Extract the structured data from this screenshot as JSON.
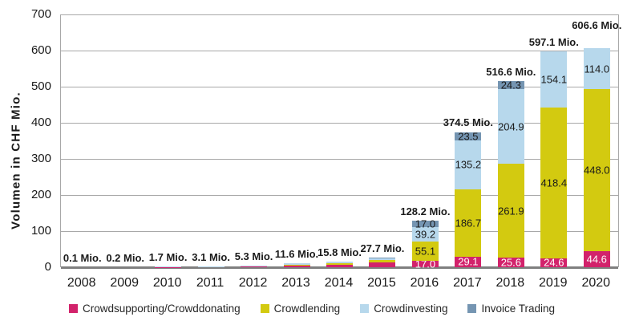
{
  "chart_data": {
    "type": "bar",
    "stacked": true,
    "title": "",
    "xlabel": "",
    "ylabel": "Volumen in CHF Mio.",
    "ylim": [
      0,
      700
    ],
    "yticks": [
      0,
      100,
      200,
      300,
      400,
      500,
      600,
      700
    ],
    "grid": true,
    "legend_position": "bottom",
    "categories": [
      "2008",
      "2009",
      "2010",
      "2011",
      "2012",
      "2013",
      "2014",
      "2015",
      "2016",
      "2017",
      "2018",
      "2019",
      "2020"
    ],
    "series": [
      {
        "name": "Crowdsupporting/Crowddonating",
        "color": "#d2226b",
        "label_color": "#ffffff",
        "values": [
          0.1,
          0.1,
          1.0,
          1.5,
          2.5,
          4.2,
          7.7,
          12.3,
          17.0,
          29.1,
          25.6,
          24.6,
          44.6
        ]
      },
      {
        "name": "Crowdlending",
        "color": "#d3ca10",
        "label_color": "#1a1a1a",
        "values": [
          0,
          0,
          0.1,
          0.1,
          0.9,
          1.8,
          3.5,
          7.9,
          55.1,
          186.7,
          261.9,
          418.4,
          448.0
        ]
      },
      {
        "name": "Crowdinvesting",
        "color": "#b7d8ec",
        "label_color": "#1a1a1a",
        "values": [
          0,
          0.1,
          0.6,
          1.5,
          1.9,
          5.6,
          4.6,
          7.1,
          39.2,
          135.2,
          204.9,
          154.1,
          114.0
        ]
      },
      {
        "name": "Invoice Trading",
        "color": "#7595b2",
        "label_color": "#1a1a1a",
        "values": [
          0,
          0,
          0,
          0,
          0,
          0,
          0,
          0.4,
          17.0,
          23.5,
          24.3,
          0,
          0
        ]
      }
    ],
    "total_labels": [
      "0.1 Mio.",
      "0.2 Mio.",
      "1.7 Mio.",
      "3.1 Mio.",
      "5.3 Mio.",
      "11.6 Mio.",
      "15.8 Mio.",
      "27.7 Mio.",
      "128.2 Mio.",
      "374.5 Mio.",
      "516.6 Mio.",
      "597.1 Mio.",
      "606.6 Mio."
    ],
    "segment_labels_from_index": 8,
    "colors": {
      "grid": "#a8a8a8",
      "axis": "#7f7f7f",
      "text": "#1a1a1a"
    }
  }
}
